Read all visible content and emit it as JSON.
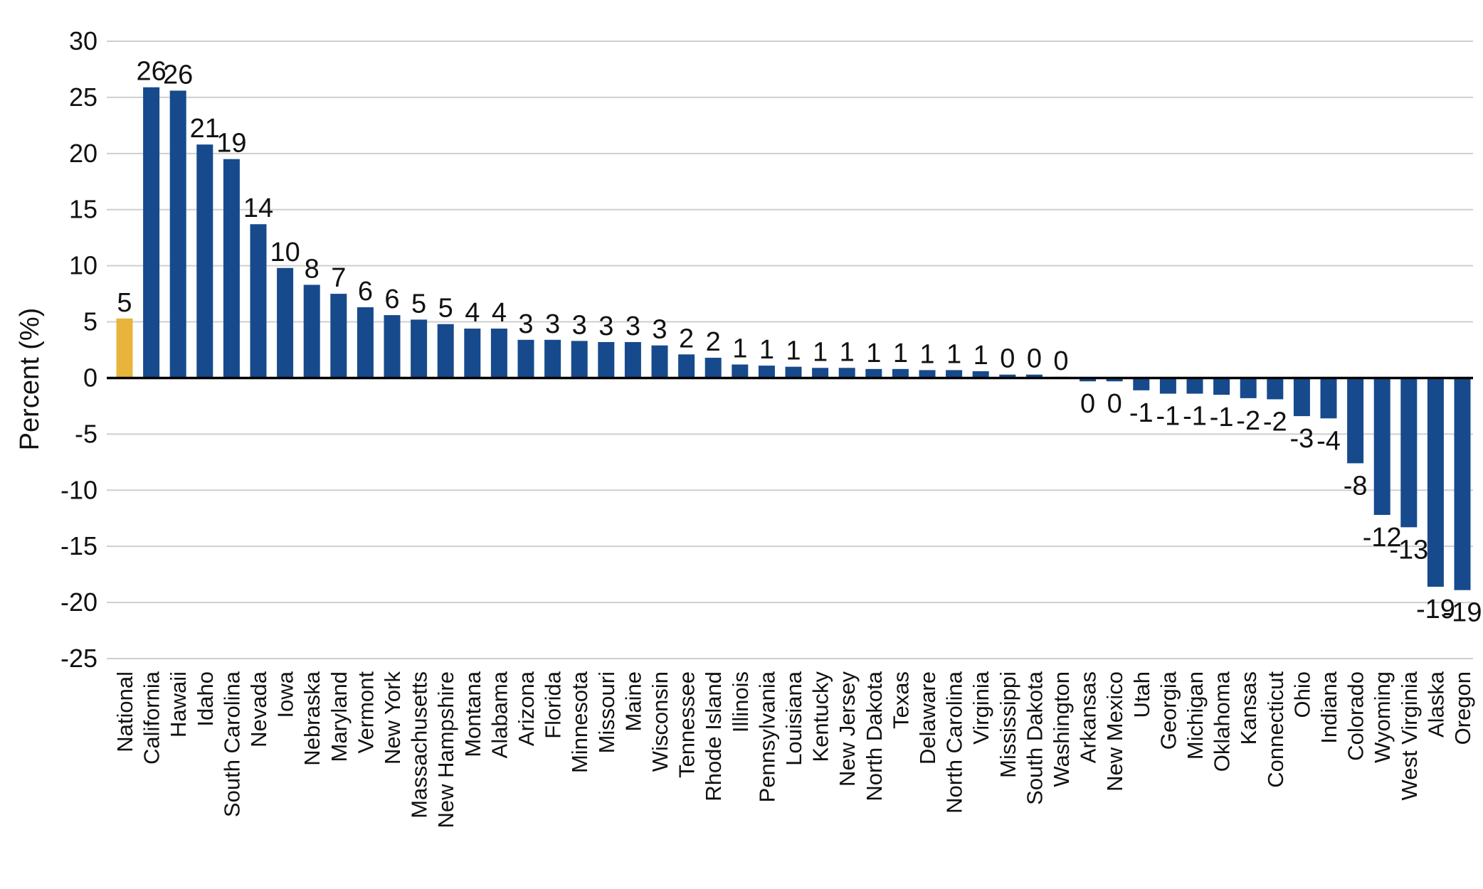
{
  "chart_data": {
    "type": "bar",
    "ylabel": "Percent (%)",
    "ylim": [
      -25,
      30
    ],
    "yticks": [
      30,
      25,
      20,
      15,
      10,
      5,
      0,
      -5,
      -10,
      -15,
      -20,
      -25
    ],
    "grid": true,
    "legend": "none",
    "colors": {
      "national": "#E8B43B",
      "state": "#164A8C"
    },
    "categories": [
      "National",
      "California",
      "Hawaii",
      "Idaho",
      "South Carolina",
      "Nevada",
      "Iowa",
      "Nebraska",
      "Maryland",
      "Vermont",
      "New York",
      "Massachusetts",
      "New Hampshire",
      "Montana",
      "Alabama",
      "Arizona",
      "Florida",
      "Minnesota",
      "Missouri",
      "Maine",
      "Wisconsin",
      "Tennessee",
      "Rhode Island",
      "Illinois",
      "Pennsylvania",
      "Louisiana",
      "Kentucky",
      "New Jersey",
      "North Dakota",
      "Texas",
      "Delaware",
      "North Carolina",
      "Virginia",
      "Mississippi",
      "South Dakota",
      "Washington",
      "Arkansas",
      "New Mexico",
      "Utah",
      "Georgia",
      "Michigan",
      "Oklahoma",
      "Kansas",
      "Connecticut",
      "Ohio",
      "Indiana",
      "Colorado",
      "Wyoming",
      "West Virginia",
      "Alaska",
      "Oregon"
    ],
    "values": [
      5.3,
      25.9,
      25.6,
      20.8,
      19.5,
      13.7,
      9.8,
      8.3,
      7.5,
      6.3,
      5.6,
      5.2,
      4.8,
      4.4,
      4.4,
      3.4,
      3.4,
      3.3,
      3.2,
      3.2,
      2.9,
      2.1,
      1.8,
      1.2,
      1.1,
      1.0,
      0.9,
      0.9,
      0.8,
      0.8,
      0.7,
      0.7,
      0.6,
      0.3,
      0.3,
      0.1,
      -0.3,
      -0.3,
      -1.1,
      -1.4,
      -1.4,
      -1.5,
      -1.8,
      -1.9,
      -3.4,
      -3.6,
      -7.6,
      -12.2,
      -13.3,
      -18.6,
      -18.9
    ],
    "labels": [
      "5",
      "26",
      "26",
      "21",
      "19",
      "14",
      "10",
      "8",
      "7",
      "6",
      "6",
      "5",
      "5",
      "4",
      "4",
      "3",
      "3",
      "3",
      "3",
      "3",
      "3",
      "2",
      "2",
      "1",
      "1",
      "1",
      "1",
      "1",
      "1",
      "1",
      "1",
      "1",
      "1",
      "0",
      "0",
      "0",
      "0",
      "0",
      "-1",
      "-1",
      "-1",
      "-1",
      "-2",
      "-2",
      "-3",
      "-4",
      "-8",
      "-12",
      "-13",
      "-19",
      "-19"
    ]
  }
}
